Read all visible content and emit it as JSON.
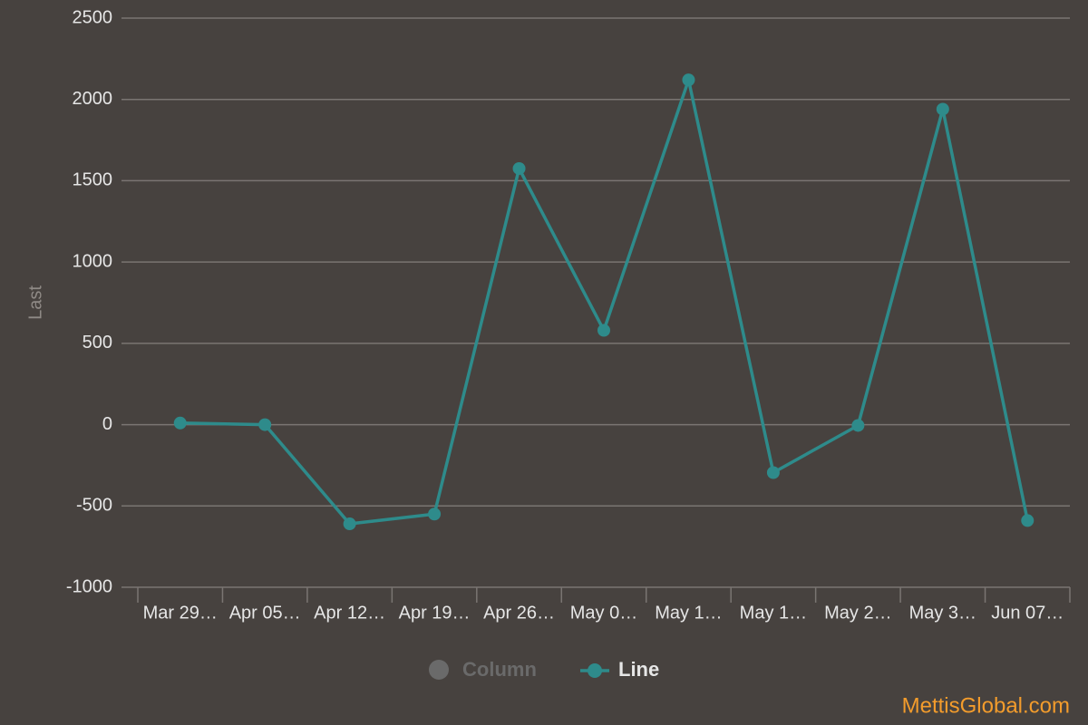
{
  "chart_data": {
    "type": "line",
    "y_label": "Last",
    "categories": [
      "Mar 29…",
      "Apr 05…",
      "Apr 12…",
      "Apr 19…",
      "Apr 26…",
      "May 0…",
      "May 1…",
      "May 1…",
      "May 2…",
      "May 3…",
      "Jun 07…"
    ],
    "series": [
      {
        "name": "Line",
        "color": "#2e8b8b",
        "values": [
          10,
          0,
          -610,
          -550,
          1575,
          580,
          2120,
          -295,
          -5,
          1940,
          -590
        ]
      }
    ],
    "hidden_series": [
      {
        "name": "Column",
        "color": "#6a6a6a"
      }
    ],
    "ylim": [
      -1000,
      2500
    ],
    "yticks": [
      -1000,
      -500,
      0,
      500,
      1000,
      1500,
      2000,
      2500
    ],
    "grid": true,
    "watermark": "MettisGlobal.com"
  }
}
